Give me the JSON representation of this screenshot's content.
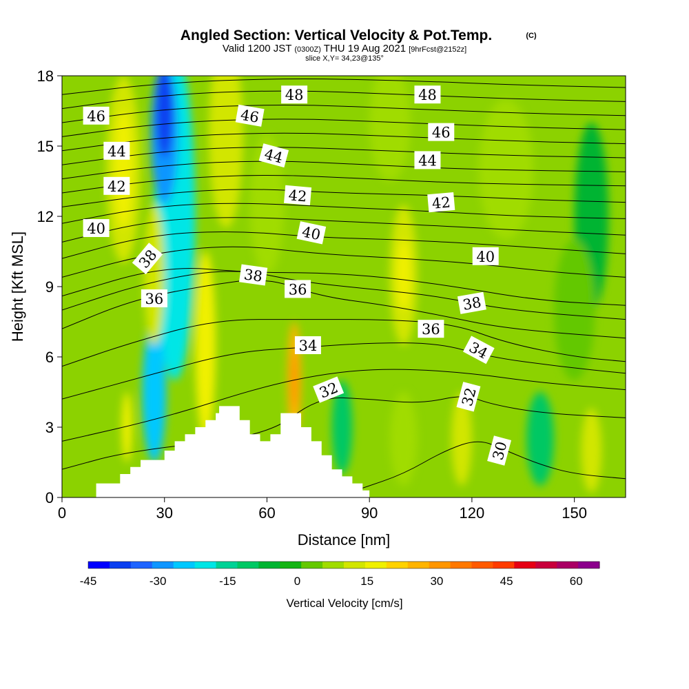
{
  "header": {
    "title": "Angled Section: Vertical Velocity & Pot.Temp.",
    "title_mark": "(C)",
    "valid_prefix": "Valid 1200 JST",
    "valid_zulu": "(0300Z)",
    "valid_date": "THU 19 Aug 2021",
    "forecast": "[9hrFcst@2152z]",
    "slice": "slice X,Y= 34,23@135°"
  },
  "chart_data": {
    "type": "heatmap",
    "xlabel": "Distance [nm]",
    "ylabel": "Height [Kft MSL]",
    "xlim": [
      0,
      165
    ],
    "ylim": [
      0,
      18
    ],
    "x_ticks": [
      0,
      30,
      60,
      90,
      120,
      150
    ],
    "y_ticks": [
      0,
      3,
      6,
      9,
      12,
      15,
      18
    ],
    "terrain": [
      [
        10,
        0.6
      ],
      [
        17,
        0.6
      ],
      [
        17,
        1.0
      ],
      [
        20,
        1.0
      ],
      [
        20,
        1.3
      ],
      [
        23,
        1.3
      ],
      [
        23,
        1.6
      ],
      [
        30,
        1.6
      ],
      [
        30,
        2.0
      ],
      [
        33,
        2.0
      ],
      [
        33,
        2.4
      ],
      [
        36,
        2.4
      ],
      [
        36,
        2.7
      ],
      [
        39,
        2.7
      ],
      [
        39,
        3.0
      ],
      [
        42,
        3.0
      ],
      [
        42,
        3.3
      ],
      [
        45,
        3.3
      ],
      [
        45,
        3.6
      ],
      [
        46,
        3.6
      ],
      [
        46,
        3.9
      ],
      [
        52,
        3.9
      ],
      [
        52,
        3.3
      ],
      [
        55,
        3.3
      ],
      [
        55,
        2.7
      ],
      [
        58,
        2.7
      ],
      [
        58,
        2.4
      ],
      [
        61,
        2.4
      ],
      [
        61,
        2.7
      ],
      [
        64,
        2.7
      ],
      [
        64,
        3.6
      ],
      [
        70,
        3.6
      ],
      [
        70,
        3.0
      ],
      [
        73,
        3.0
      ],
      [
        73,
        2.4
      ],
      [
        76,
        2.4
      ],
      [
        76,
        1.8
      ],
      [
        79,
        1.8
      ],
      [
        79,
        1.2
      ],
      [
        82,
        1.2
      ],
      [
        82,
        0.9
      ],
      [
        85,
        0.9
      ],
      [
        85,
        0.6
      ],
      [
        88,
        0.6
      ],
      [
        88,
        0.3
      ],
      [
        90,
        0.3
      ]
    ],
    "theta_contours": [
      {
        "label": "30",
        "label_x": 128,
        "label_y": 2.0,
        "rot": -75,
        "points": [
          [
            88,
            0.4
          ],
          [
            100,
            1.0
          ],
          [
            112,
            2.0
          ],
          [
            122,
            2.5
          ],
          [
            130,
            2.0
          ],
          [
            140,
            1.4
          ],
          [
            150,
            1.0
          ],
          [
            165,
            0.8
          ]
        ]
      },
      {
        "label": "32",
        "label_x": 78,
        "label_y": 4.6,
        "rot": -22,
        "points": [
          [
            0,
            1.2
          ],
          [
            20,
            2.0
          ],
          [
            60,
            2.6
          ],
          [
            75,
            4.3
          ],
          [
            90,
            4.2
          ],
          [
            105,
            4.0
          ],
          [
            118,
            4.4
          ],
          [
            125,
            4.0
          ],
          [
            140,
            3.6
          ],
          [
            165,
            3.4
          ]
        ]
      },
      {
        "label": "32",
        "label_x": 119,
        "label_y": 4.3,
        "rot": -75,
        "points": [
          [
            0,
            2.4
          ],
          [
            30,
            3.4
          ],
          [
            60,
            4.8
          ],
          [
            82,
            5.4
          ],
          [
            100,
            5.5
          ],
          [
            120,
            5.3
          ],
          [
            140,
            4.9
          ],
          [
            165,
            4.6
          ]
        ]
      },
      {
        "label": "34",
        "label_x": 72,
        "label_y": 6.5,
        "rot": 0,
        "points": [
          [
            0,
            4.2
          ],
          [
            25,
            5.2
          ],
          [
            50,
            6.2
          ],
          [
            70,
            6.4
          ],
          [
            90,
            6.6
          ],
          [
            110,
            6.6
          ],
          [
            125,
            6.0
          ],
          [
            145,
            5.6
          ],
          [
            165,
            5.3
          ]
        ]
      },
      {
        "label": "34",
        "label_x": 122,
        "label_y": 6.3,
        "rot": 28,
        "points": [
          [
            0,
            5.6
          ],
          [
            20,
            6.6
          ],
          [
            45,
            7.6
          ],
          [
            70,
            7.6
          ],
          [
            95,
            7.6
          ],
          [
            115,
            7.4
          ],
          [
            130,
            6.6
          ],
          [
            150,
            6.0
          ],
          [
            165,
            5.8
          ]
        ]
      },
      {
        "label": "36",
        "label_x": 27,
        "label_y": 8.5,
        "rot": 0,
        "points": [
          [
            0,
            7.2
          ],
          [
            20,
            8.4
          ],
          [
            40,
            9.0
          ],
          [
            60,
            9.4
          ],
          [
            75,
            8.6
          ],
          [
            95,
            8.2
          ],
          [
            110,
            7.8
          ],
          [
            130,
            7.2
          ],
          [
            165,
            6.8
          ]
        ]
      },
      {
        "label": "36",
        "label_x": 69,
        "label_y": 8.9,
        "rot": 0,
        "points": [
          [
            0,
            8.0
          ],
          [
            25,
            9.2
          ],
          [
            50,
            9.8
          ],
          [
            70,
            9.2
          ],
          [
            90,
            8.9
          ],
          [
            110,
            8.6
          ],
          [
            130,
            8.0
          ],
          [
            165,
            7.6
          ]
        ]
      },
      {
        "label": "36",
        "label_x": 108,
        "label_y": 7.2,
        "rot": 0,
        "points": [
          [
            0,
            8.6
          ],
          [
            30,
            9.9
          ],
          [
            55,
            9.6
          ],
          [
            75,
            9.6
          ],
          [
            95,
            9.4
          ],
          [
            115,
            9.0
          ],
          [
            140,
            8.4
          ],
          [
            165,
            8.2
          ]
        ]
      },
      {
        "label": "38",
        "label_x": 25,
        "label_y": 10.2,
        "rot": -50,
        "points": [
          [
            0,
            9.4
          ],
          [
            25,
            10.4
          ],
          [
            50,
            10.8
          ],
          [
            75,
            10.4
          ],
          [
            100,
            10.2
          ],
          [
            120,
            10.0
          ],
          [
            145,
            9.6
          ],
          [
            165,
            9.4
          ]
        ]
      },
      {
        "label": "38",
        "label_x": 56,
        "label_y": 9.5,
        "rot": 8,
        "points": [
          [
            0,
            10.2
          ],
          [
            25,
            11.2
          ],
          [
            50,
            11.4
          ],
          [
            75,
            11.1
          ],
          [
            100,
            11.0
          ],
          [
            125,
            10.8
          ],
          [
            165,
            10.4
          ]
        ]
      },
      {
        "label": "38",
        "label_x": 120,
        "label_y": 8.3,
        "rot": -10,
        "points": [
          [
            0,
            10.9
          ],
          [
            25,
            11.8
          ],
          [
            50,
            12.0
          ],
          [
            80,
            11.8
          ],
          [
            110,
            11.6
          ],
          [
            135,
            11.4
          ],
          [
            165,
            11.2
          ]
        ]
      },
      {
        "label": "40",
        "label_x": 10,
        "label_y": 11.5,
        "rot": 0,
        "points": [
          [
            0,
            11.7
          ],
          [
            25,
            12.4
          ],
          [
            50,
            12.6
          ],
          [
            80,
            12.4
          ],
          [
            110,
            12.2
          ],
          [
            135,
            12.0
          ],
          [
            165,
            11.9
          ]
        ]
      },
      {
        "label": "40",
        "label_x": 73,
        "label_y": 11.3,
        "rot": 12,
        "points": [
          [
            0,
            12.4
          ],
          [
            30,
            13.0
          ],
          [
            55,
            13.2
          ],
          [
            80,
            13.0
          ],
          [
            110,
            12.9
          ],
          [
            140,
            12.7
          ],
          [
            165,
            12.6
          ]
        ]
      },
      {
        "label": "40",
        "label_x": 124,
        "label_y": 10.3,
        "rot": 0,
        "points": [
          [
            0,
            13.0
          ],
          [
            30,
            13.6
          ],
          [
            60,
            13.8
          ],
          [
            90,
            13.6
          ],
          [
            120,
            13.4
          ],
          [
            165,
            13.3
          ]
        ]
      },
      {
        "label": "42",
        "label_x": 16,
        "label_y": 13.3,
        "rot": 0,
        "points": [
          [
            0,
            13.6
          ],
          [
            30,
            14.2
          ],
          [
            60,
            14.4
          ],
          [
            90,
            14.2
          ],
          [
            120,
            14.0
          ],
          [
            165,
            13.9
          ]
        ]
      },
      {
        "label": "42",
        "label_x": 69,
        "label_y": 12.9,
        "rot": 5,
        "points": [
          [
            0,
            14.2
          ],
          [
            30,
            14.8
          ],
          [
            60,
            15.0
          ],
          [
            95,
            14.8
          ],
          [
            130,
            14.6
          ],
          [
            165,
            14.5
          ]
        ]
      },
      {
        "label": "42",
        "label_x": 111,
        "label_y": 12.6,
        "rot": -5,
        "points": [
          [
            0,
            14.8
          ],
          [
            30,
            15.4
          ],
          [
            65,
            15.6
          ],
          [
            100,
            15.4
          ],
          [
            135,
            15.2
          ],
          [
            165,
            15.1
          ]
        ]
      },
      {
        "label": "44",
        "label_x": 16,
        "label_y": 14.8,
        "rot": 0,
        "points": [
          [
            0,
            15.4
          ],
          [
            30,
            16.0
          ],
          [
            65,
            16.2
          ],
          [
            100,
            16.0
          ],
          [
            135,
            15.8
          ],
          [
            165,
            15.7
          ]
        ]
      },
      {
        "label": "44",
        "label_x": 62,
        "label_y": 14.6,
        "rot": 15,
        "points": [
          [
            0,
            16.0
          ],
          [
            30,
            16.6
          ],
          [
            65,
            16.8
          ],
          [
            100,
            16.6
          ],
          [
            135,
            16.4
          ],
          [
            165,
            16.3
          ]
        ]
      },
      {
        "label": "44",
        "label_x": 107,
        "label_y": 14.4,
        "rot": 0,
        "points": [
          [
            0,
            16.6
          ],
          [
            30,
            17.2
          ],
          [
            65,
            17.4
          ],
          [
            100,
            17.2
          ],
          [
            135,
            17.0
          ],
          [
            165,
            16.9
          ]
        ]
      },
      {
        "label": "46",
        "label_x": 10,
        "label_y": 16.3,
        "rot": 0,
        "points": [
          [
            0,
            17.2
          ],
          [
            30,
            17.7
          ],
          [
            65,
            17.9
          ],
          [
            100,
            17.8
          ],
          [
            135,
            17.6
          ],
          [
            165,
            17.5
          ]
        ]
      },
      {
        "label": "46",
        "label_x": 55,
        "label_y": 16.3,
        "rot": 10,
        "points": []
      },
      {
        "label": "46",
        "label_x": 111,
        "label_y": 15.6,
        "rot": 0,
        "points": []
      },
      {
        "label": "48",
        "label_x": 68,
        "label_y": 17.2,
        "rot": 0,
        "points": []
      },
      {
        "label": "48",
        "label_x": 107,
        "label_y": 17.2,
        "rot": 0,
        "points": []
      }
    ],
    "velocity_blobs": [
      {
        "cx": 18,
        "cy": 14.0,
        "rx": 5,
        "ry": 4.0,
        "value": 15
      },
      {
        "cx": 18,
        "cy": 14.0,
        "rx": 2.5,
        "ry": 2.5,
        "value": 20
      },
      {
        "cx": 33,
        "cy": 12.0,
        "rx": 6,
        "ry": 7.0,
        "value": -20
      },
      {
        "cx": 30,
        "cy": 15.5,
        "rx": 4,
        "ry": 3.0,
        "value": -30
      },
      {
        "cx": 30,
        "cy": 16.5,
        "rx": 2.5,
        "ry": 2.0,
        "value": -40
      },
      {
        "cx": 27,
        "cy": 4.5,
        "rx": 3.5,
        "ry": 3.0,
        "value": -25
      },
      {
        "cx": 27,
        "cy": 9.5,
        "rx": 3,
        "ry": 3.0,
        "value": 15
      },
      {
        "cx": 42,
        "cy": 6.5,
        "rx": 3,
        "ry": 4.0,
        "value": 20
      },
      {
        "cx": 48,
        "cy": 15.5,
        "rx": 5,
        "ry": 4.0,
        "value": 15
      },
      {
        "cx": 68,
        "cy": 5.0,
        "rx": 2,
        "ry": 2.5,
        "value": 30
      },
      {
        "cx": 68,
        "cy": 5.0,
        "rx": 1,
        "ry": 1.2,
        "value": 35
      },
      {
        "cx": 19,
        "cy": 3.0,
        "rx": 1.5,
        "ry": 1.5,
        "value": 20
      },
      {
        "cx": 100,
        "cy": 9.5,
        "rx": 4,
        "ry": 3.0,
        "value": 15
      },
      {
        "cx": 100,
        "cy": 9.5,
        "rx": 2,
        "ry": 1.5,
        "value": 20
      },
      {
        "cx": 96,
        "cy": 16.0,
        "rx": 6,
        "ry": 2.5,
        "value": 10
      },
      {
        "cx": 130,
        "cy": 14.0,
        "rx": 8,
        "ry": 3.0,
        "value": 10
      },
      {
        "cx": 117,
        "cy": 2.5,
        "rx": 3,
        "ry": 2.0,
        "value": 15
      },
      {
        "cx": 140,
        "cy": 2.5,
        "rx": 4,
        "ry": 2.0,
        "value": -10
      },
      {
        "cx": 155,
        "cy": 2.0,
        "rx": 3,
        "ry": 1.8,
        "value": 15
      },
      {
        "cx": 100,
        "cy": 2.5,
        "rx": 4,
        "ry": 2.0,
        "value": 10
      },
      {
        "cx": 82,
        "cy": 3.0,
        "rx": 3,
        "ry": 2.0,
        "value": -10
      },
      {
        "cx": 155,
        "cy": 12.0,
        "rx": 5,
        "ry": 4.0,
        "value": -5
      },
      {
        "cx": 150,
        "cy": 8.0,
        "rx": 6,
        "ry": 3.0,
        "value": 5
      },
      {
        "cx": 60,
        "cy": 12.5,
        "rx": 5,
        "ry": 3.0,
        "value": 10
      }
    ],
    "colorbar": {
      "label": "Vertical Velocity [cm/s]",
      "min": -45,
      "max": 65,
      "step": 5,
      "ticks": [
        -45,
        -30,
        -15,
        0,
        15,
        30,
        45,
        60
      ],
      "colors": [
        "#0000ff",
        "#0a3ff0",
        "#1e64ff",
        "#0f96ff",
        "#00c8ff",
        "#00e6e6",
        "#00d296",
        "#00c864",
        "#00b432",
        "#14b414",
        "#64c800",
        "#a0dc00",
        "#d2e600",
        "#f0f000",
        "#ffd200",
        "#ffb400",
        "#ff9600",
        "#ff7800",
        "#ff5a00",
        "#ff3c00",
        "#e60014",
        "#c8003c",
        "#aa0064",
        "#8c008c"
      ]
    }
  }
}
